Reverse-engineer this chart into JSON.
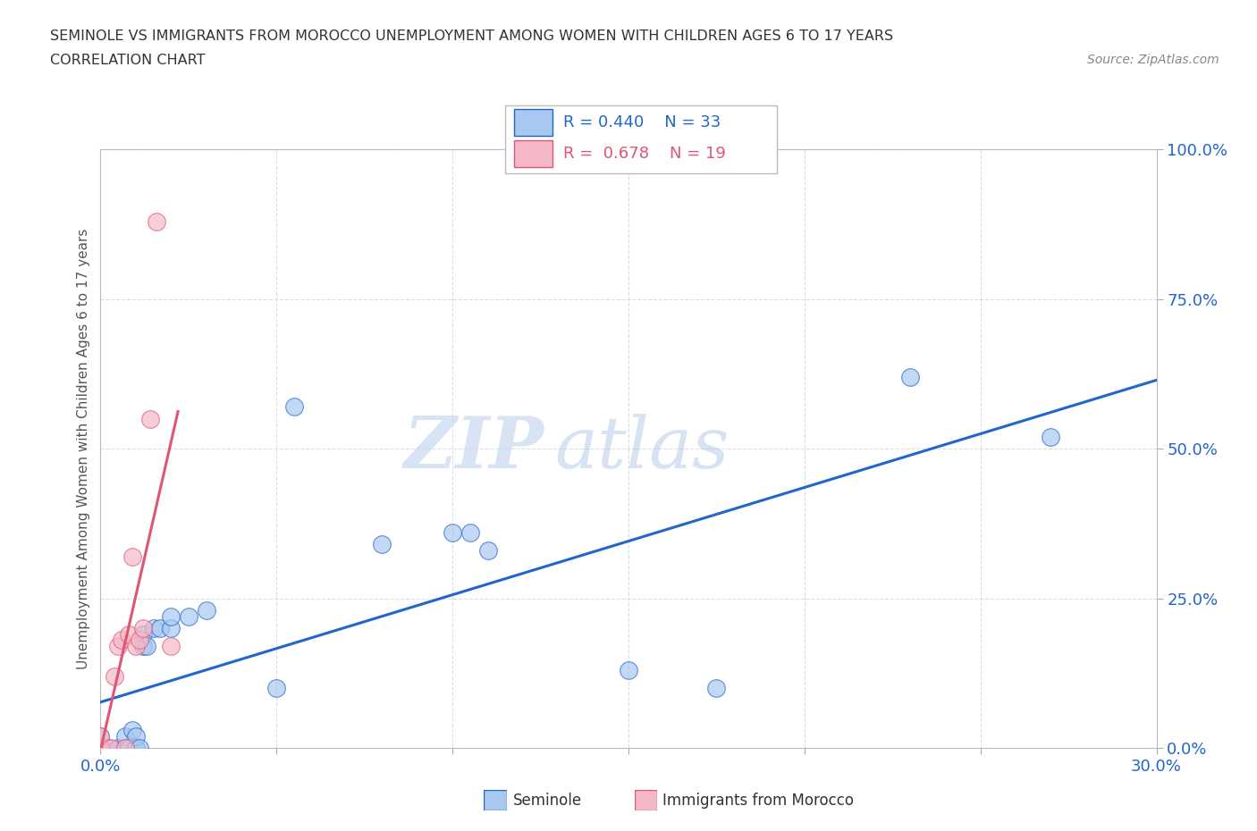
{
  "title_line1": "SEMINOLE VS IMMIGRANTS FROM MOROCCO UNEMPLOYMENT AMONG WOMEN WITH CHILDREN AGES 6 TO 17 YEARS",
  "title_line2": "CORRELATION CHART",
  "source": "Source: ZipAtlas.com",
  "ylabel": "Unemployment Among Women with Children Ages 6 to 17 years",
  "xlim": [
    0,
    0.3
  ],
  "ylim": [
    0,
    1.0
  ],
  "xticks": [
    0.0,
    0.05,
    0.1,
    0.15,
    0.2,
    0.25,
    0.3
  ],
  "xticklabels": [
    "0.0%",
    "",
    "",
    "",
    "",
    "",
    "30.0%"
  ],
  "yticks": [
    0.0,
    0.25,
    0.5,
    0.75,
    1.0
  ],
  "yticklabels": [
    "0.0%",
    "25.0%",
    "50.0%",
    "75.0%",
    "100.0%"
  ],
  "seminole_color": "#a8c8f0",
  "morocco_color": "#f5b8c8",
  "trendline_seminole_color": "#2266cc",
  "trendline_morocco_color": "#e05575",
  "seminole_R": 0.44,
  "seminole_N": 33,
  "morocco_R": 0.678,
  "morocco_N": 19,
  "watermark_zip": "ZIP",
  "watermark_atlas": "atlas",
  "background_color": "#ffffff",
  "grid_color": "#dddddd",
  "seminole_x": [
    0.0,
    0.0,
    0.0,
    0.0,
    0.0,
    0.002,
    0.005,
    0.007,
    0.007,
    0.008,
    0.009,
    0.01,
    0.01,
    0.011,
    0.012,
    0.012,
    0.013,
    0.015,
    0.017,
    0.02,
    0.02,
    0.025,
    0.03,
    0.05,
    0.055,
    0.08,
    0.1,
    0.105,
    0.11,
    0.15,
    0.175,
    0.23,
    0.27
  ],
  "seminole_y": [
    0.0,
    0.0,
    0.0,
    0.0,
    0.02,
    0.0,
    0.0,
    0.0,
    0.02,
    0.0,
    0.03,
    0.0,
    0.02,
    0.0,
    0.17,
    0.19,
    0.17,
    0.2,
    0.2,
    0.2,
    0.22,
    0.22,
    0.23,
    0.1,
    0.57,
    0.34,
    0.36,
    0.36,
    0.33,
    0.13,
    0.1,
    0.62,
    0.52
  ],
  "morocco_x": [
    0.0,
    0.0,
    0.0,
    0.0,
    0.0,
    0.0,
    0.003,
    0.004,
    0.005,
    0.006,
    0.007,
    0.008,
    0.009,
    0.01,
    0.011,
    0.012,
    0.014,
    0.016,
    0.02
  ],
  "morocco_y": [
    0.0,
    0.0,
    0.0,
    0.0,
    0.0,
    0.02,
    0.0,
    0.12,
    0.17,
    0.18,
    0.0,
    0.19,
    0.32,
    0.17,
    0.18,
    0.2,
    0.55,
    0.88,
    0.17
  ],
  "legend_r_color": "#2266cc",
  "legend_n_color": "#2266cc"
}
